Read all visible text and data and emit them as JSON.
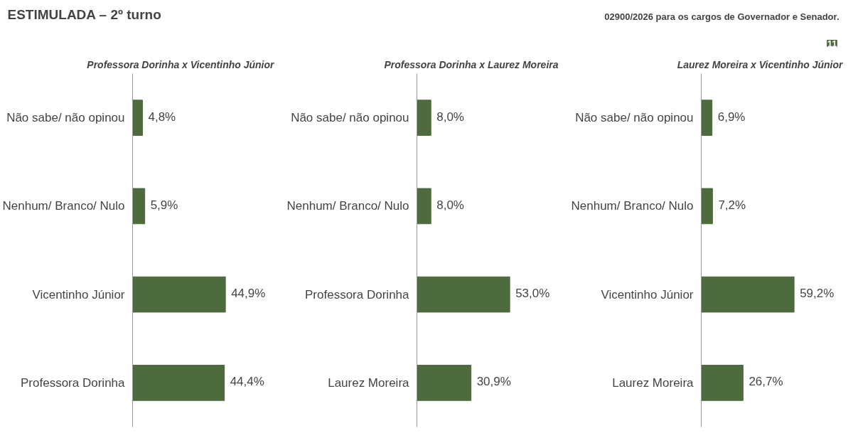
{
  "chart_data": [
    {
      "type": "other",
      "title": "ESTIMULADA – 2º turno",
      "annotations": [
        "02900/2026 para os cargos de Governador e Senador.",
        "11"
      ]
    },
    {
      "type": "bar",
      "orientation": "horizontal",
      "title": "Professora Dorinha x Vicentinho Júnior",
      "categories": [
        "Não sabe/ não opinou",
        "Nenhum/ Branco/ Nulo",
        "Vicentinho Júnior",
        "Professora Dorinha"
      ],
      "values": [
        4.8,
        5.9,
        44.9,
        44.4
      ],
      "value_labels": [
        "4,8%",
        "5,9%",
        "44,9%",
        "44,4%"
      ],
      "color": "#4e6b3e",
      "tick_labels": "y",
      "grid": false
    },
    {
      "type": "bar",
      "orientation": "horizontal",
      "title": "Professora Dorinha x Laurez Moreira",
      "categories": [
        "Não sabe/ não opinou",
        "Nenhum/ Branco/ Nulo",
        "Professora Dorinha",
        "Laurez Moreira"
      ],
      "values": [
        8.0,
        8.0,
        53.0,
        30.9
      ],
      "value_labels": [
        "8,0%",
        "8,0%",
        "53,0%",
        "30,9%"
      ],
      "color": "#4e6b3e",
      "tick_labels": "y",
      "grid": false
    },
    {
      "type": "bar",
      "orientation": "horizontal",
      "title": "Laurez Moreira x Vicentinho Júnior",
      "categories": [
        "Não sabe/ não opinou",
        "Nenhum/ Branco/ Nulo",
        "Vicentinho Júnior",
        "Laurez Moreira"
      ],
      "values": [
        6.9,
        7.2,
        59.2,
        26.7
      ],
      "value_labels": [
        "6,9%",
        "7,2%",
        "59,2%",
        "26,7%"
      ],
      "color": "#4e6b3e",
      "tick_labels": "y",
      "grid": false
    }
  ]
}
